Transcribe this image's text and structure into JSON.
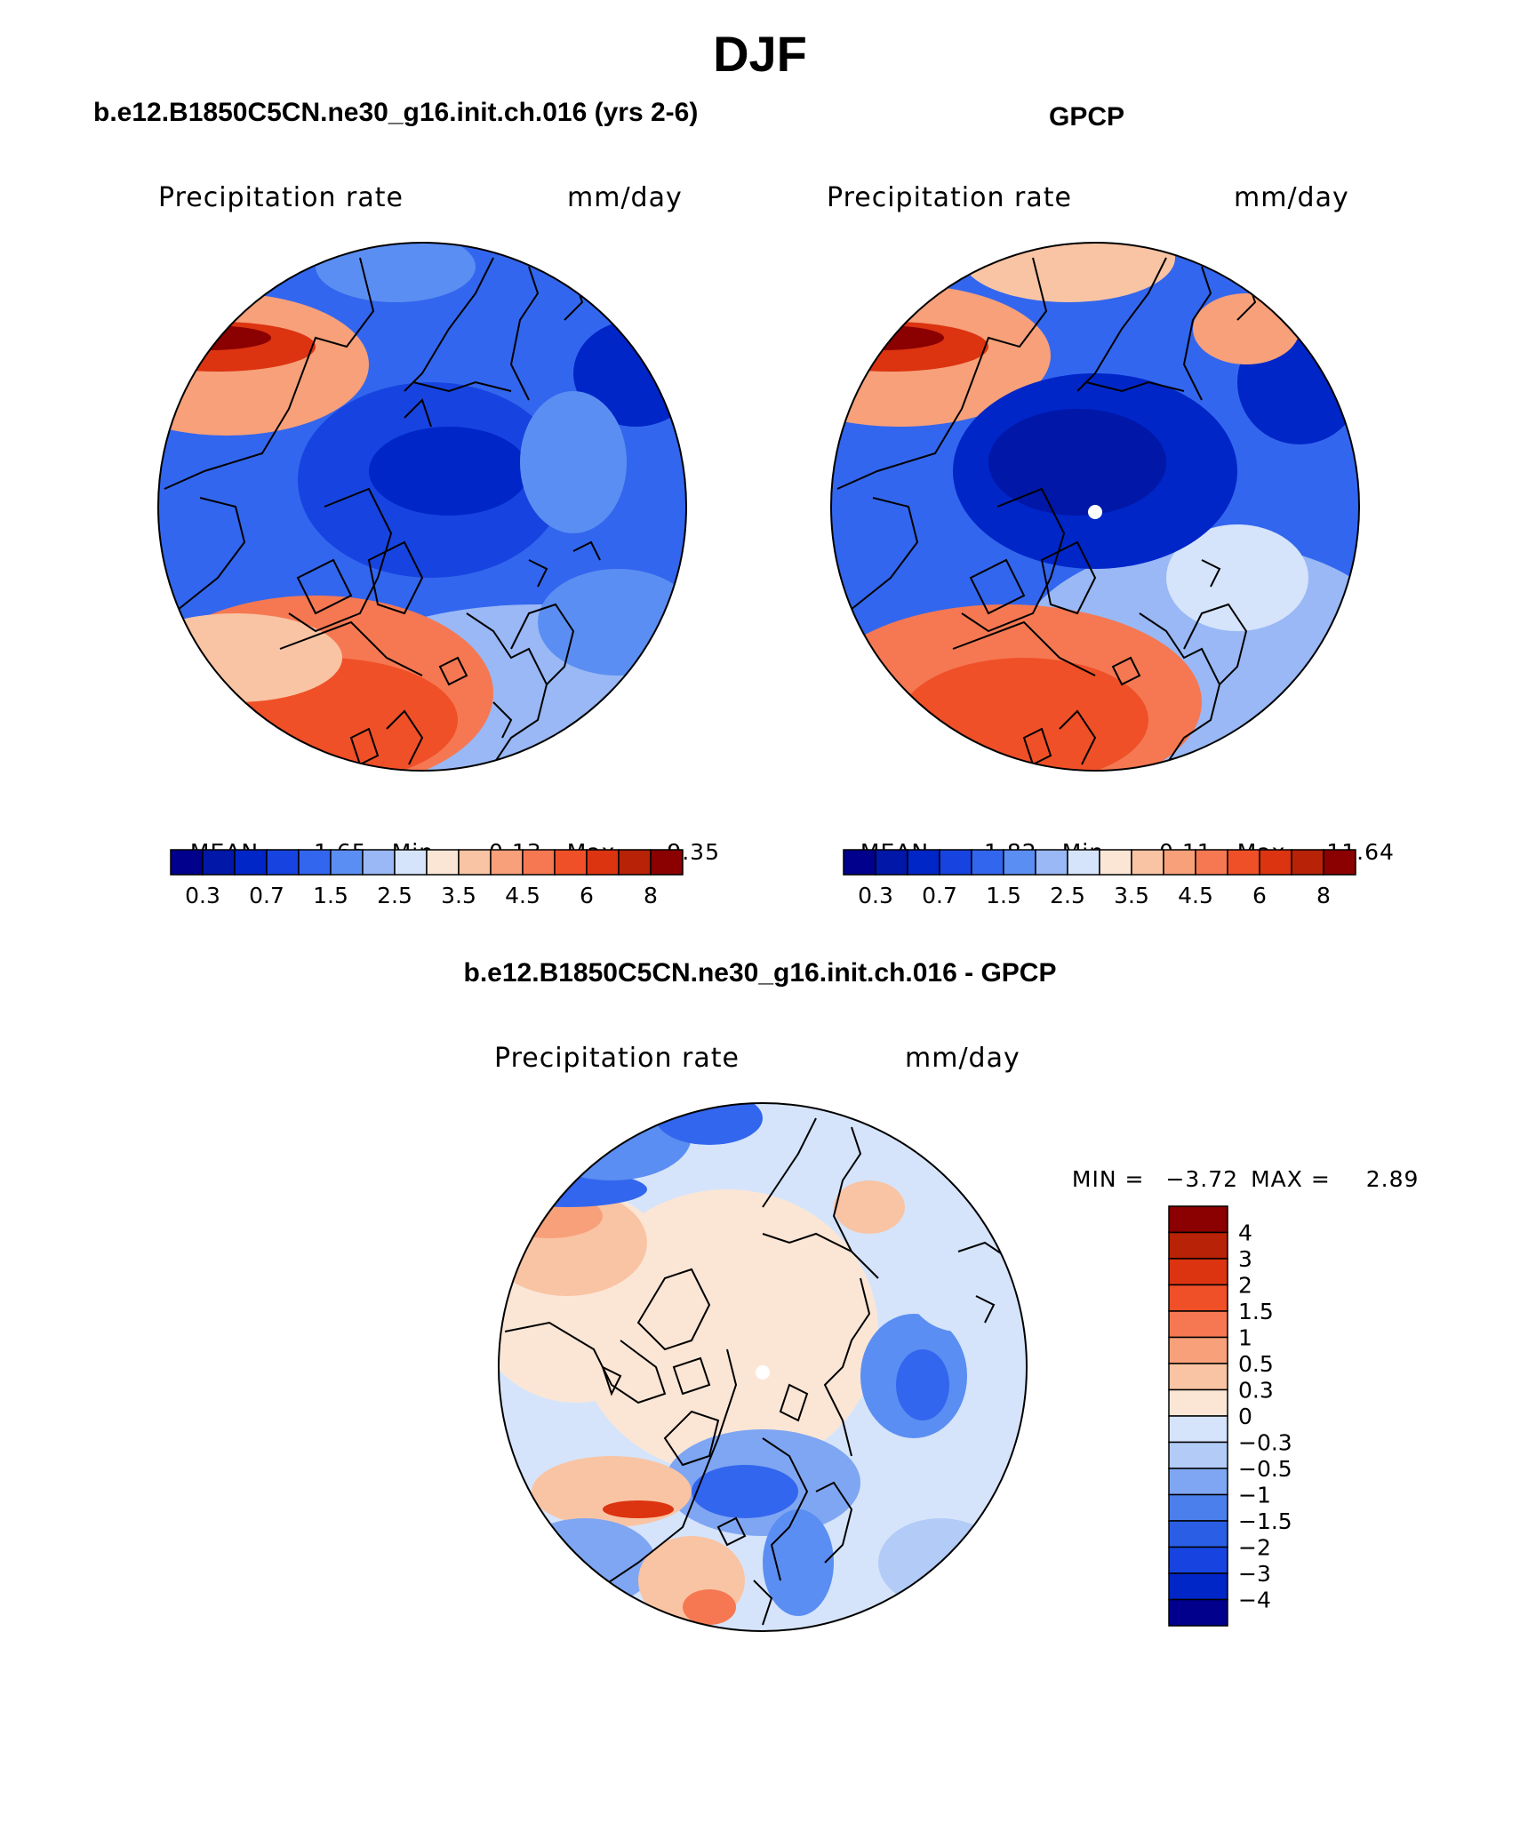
{
  "title": "DJF",
  "panels": [
    {
      "case_title": "b.e12.B1850C5CN.ne30_g16.init.ch.016 (yrs 2-6)",
      "variable": "Precipitation rate",
      "units": "mm/day",
      "stats": {
        "mean_label": "MEAN=",
        "mean": "1.65",
        "min_label": "Min=",
        "min": "0.13",
        "max_label": "Max=",
        "max": "9.35"
      }
    },
    {
      "case_title": "GPCP",
      "variable": "Precipitation rate",
      "units": "mm/day",
      "stats": {
        "mean_label": "MEAN=",
        "mean": "1.82",
        "min_label": "Min=",
        "min": "0.11",
        "max_label": "Max=",
        "max": "11.64"
      }
    }
  ],
  "abs_colorbar": {
    "colors": [
      "#00008c",
      "#0017a8",
      "#0026c8",
      "#1744e0",
      "#3366ee",
      "#5b8ef2",
      "#99b8f5",
      "#d5e4fb",
      "#fbe6d6",
      "#f9c4a4",
      "#f7a07a",
      "#f57852",
      "#ef5028",
      "#dc3310",
      "#b82206",
      "#8b0000"
    ],
    "tick_labels": [
      "0.3",
      "0.7",
      "1.5",
      "2.5",
      "3.5",
      "4.5",
      "6",
      "8"
    ]
  },
  "diff_panel": {
    "title": "b.e12.B1850C5CN.ne30_g16.init.ch.016 - GPCP",
    "variable": "Precipitation rate",
    "units": "mm/day",
    "min_label": "MIN =",
    "min": "−3.72",
    "max_label": "MAX =",
    "max": "2.89"
  },
  "diff_colorbar": {
    "colors_top_to_bottom": [
      "#8b0000",
      "#b82206",
      "#dc3310",
      "#ef5028",
      "#f57852",
      "#f7a07a",
      "#f9c4a4",
      "#fbe6d6",
      "#d5e4fb",
      "#b2cbf7",
      "#7fa6f2",
      "#4a7fec",
      "#2a5ee4",
      "#1744e0",
      "#0026c8",
      "#00008c"
    ],
    "labels_top_to_bottom": [
      "4",
      "3",
      "2",
      "1.5",
      "1",
      "0.5",
      "0.3",
      "0",
      "−0.3",
      "−0.5",
      "−1",
      "−1.5",
      "−2",
      "−3",
      "−4"
    ]
  }
}
